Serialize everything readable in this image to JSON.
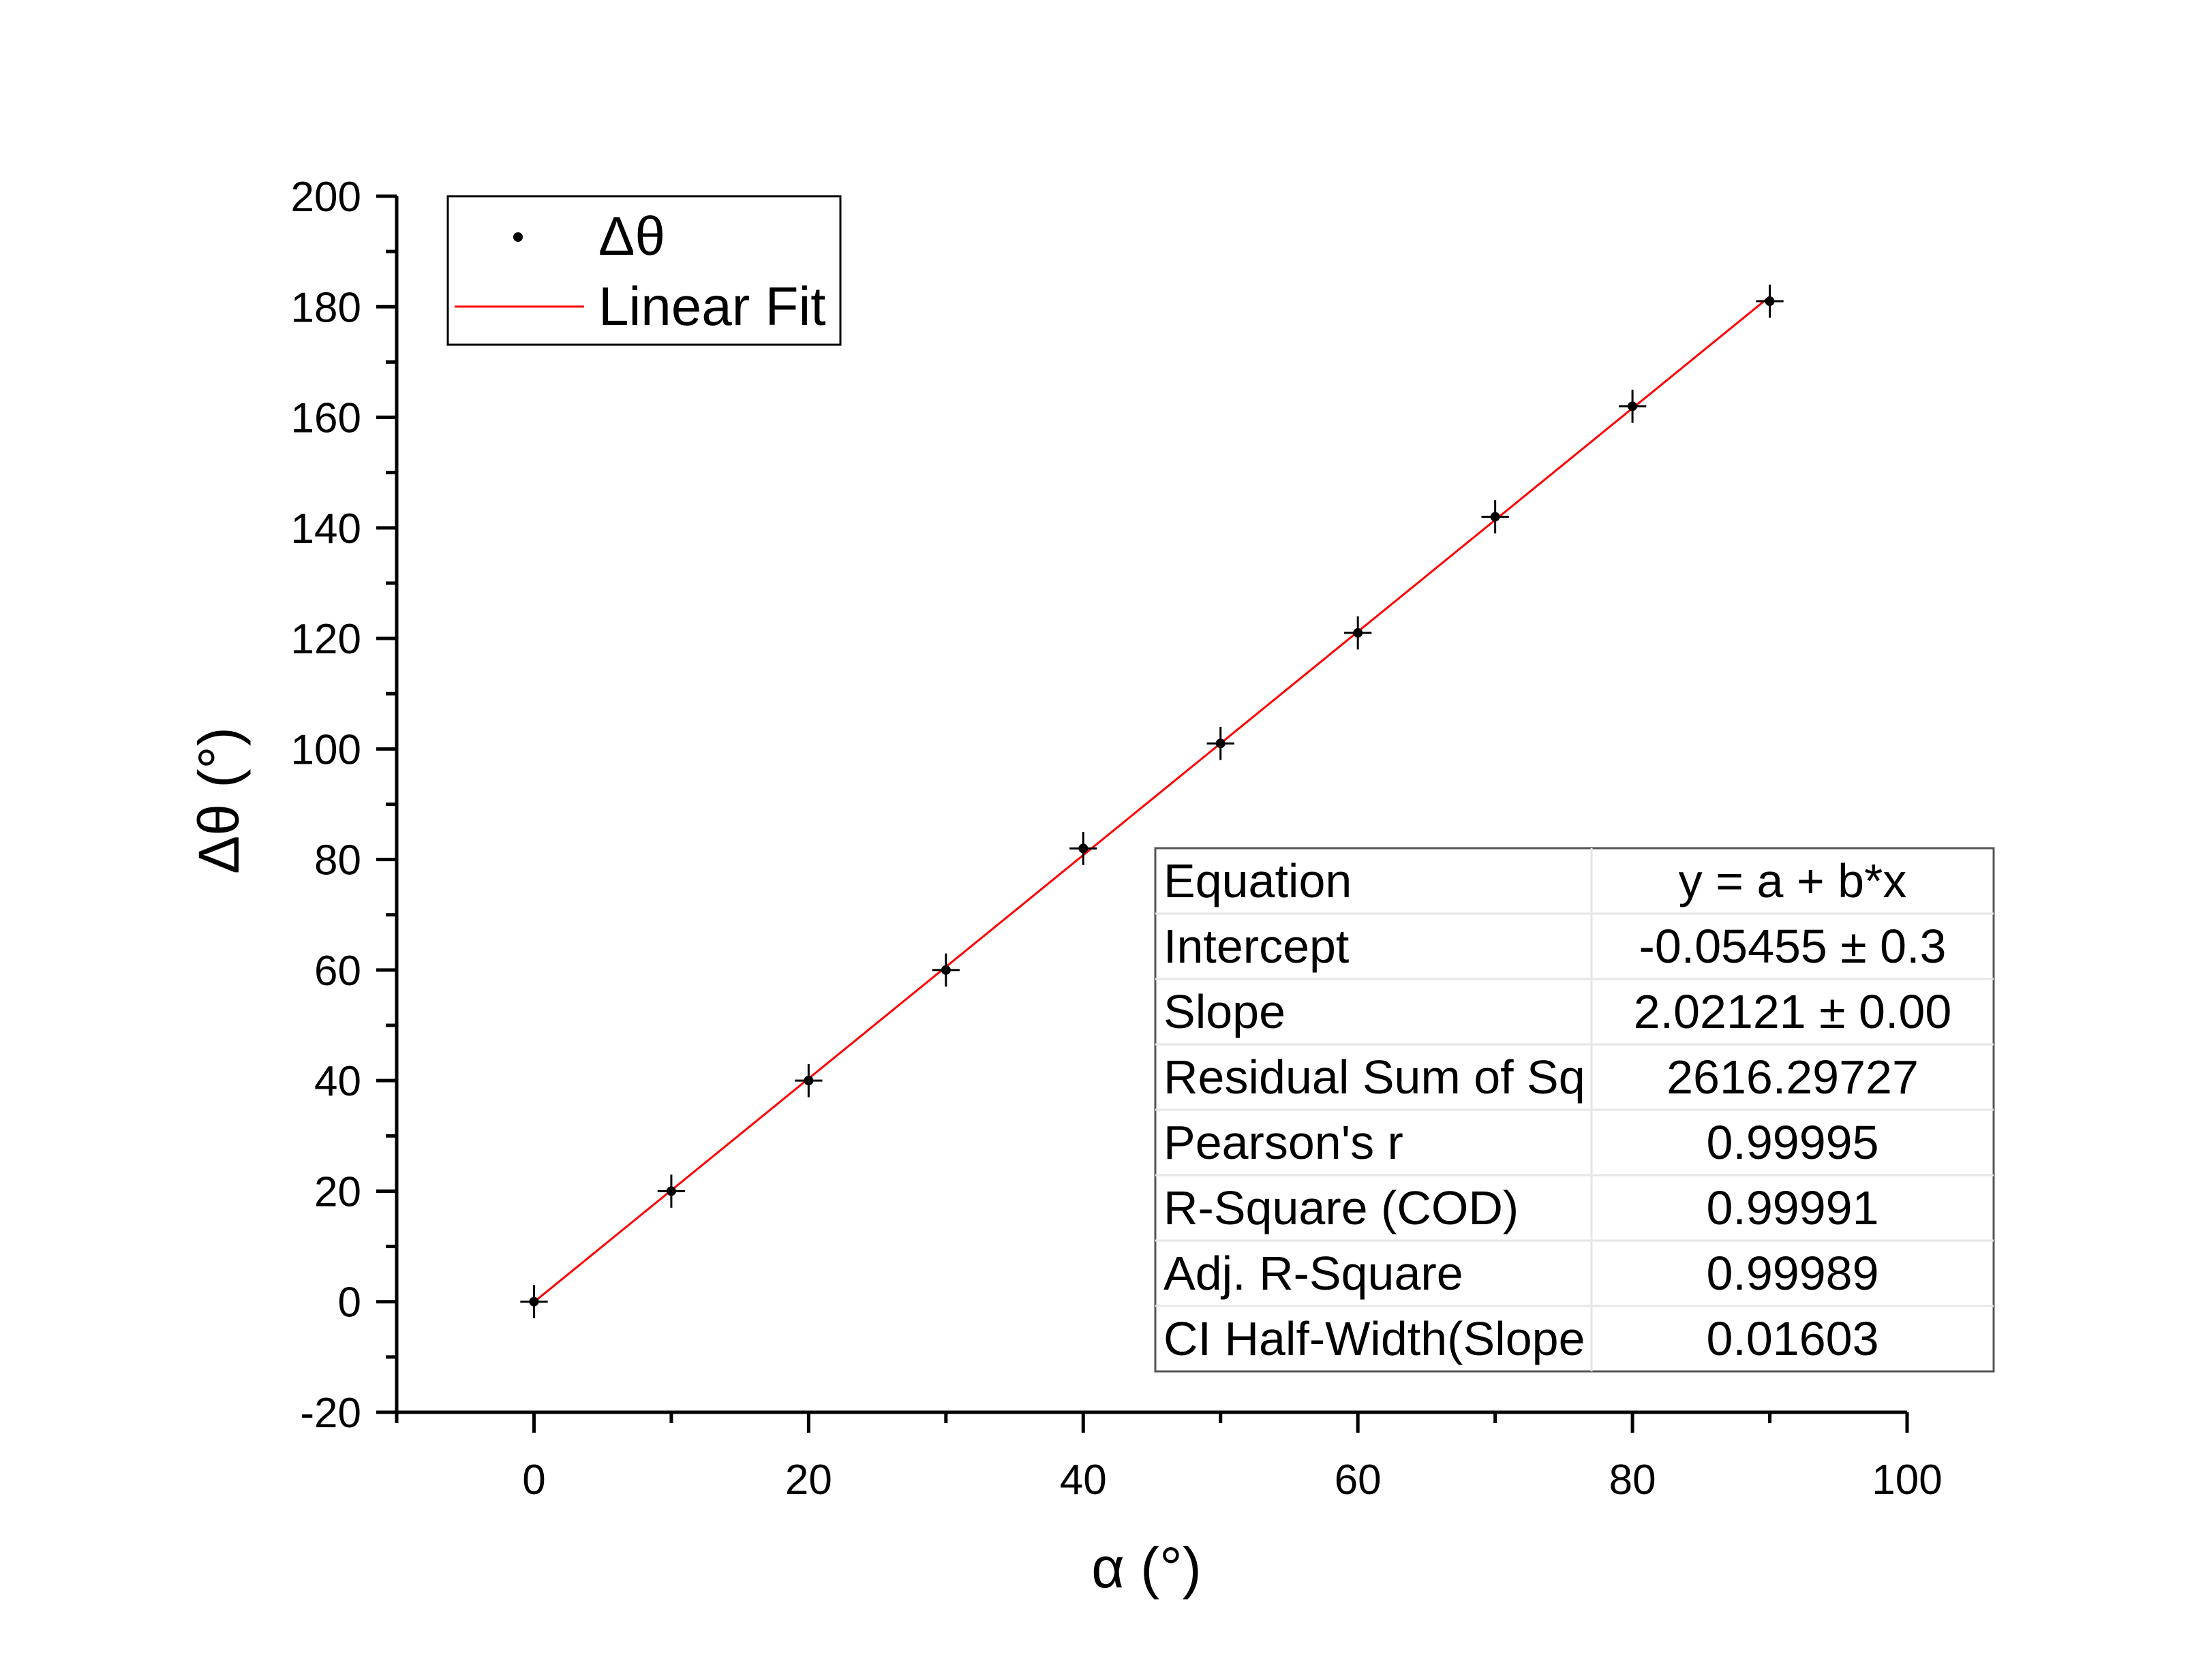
{
  "chart_data": {
    "type": "scatter",
    "xlabel": "α (°)",
    "ylabel": "Δθ (°)",
    "xlim": [
      -10,
      100
    ],
    "ylim": [
      -20,
      200
    ],
    "x_ticks": [
      0,
      20,
      40,
      60,
      80,
      100
    ],
    "y_ticks": [
      -20,
      0,
      20,
      40,
      60,
      80,
      100,
      120,
      140,
      160,
      180,
      200
    ],
    "grid": false,
    "legend_placement": "top-left",
    "series": [
      {
        "name": "Δθ",
        "kind": "points-with-error-bars",
        "color": "#000000",
        "x": [
          0,
          10,
          20,
          30,
          40,
          50,
          60,
          70,
          80,
          90
        ],
        "y": [
          0,
          20,
          40,
          60,
          82,
          101,
          121,
          142,
          162,
          181
        ],
        "x_error": 1,
        "y_error": 3
      },
      {
        "name": "Linear Fit",
        "kind": "line",
        "color": "#ff0000",
        "intercept": -0.05455,
        "slope": 2.02121,
        "x_range": [
          0,
          90
        ]
      }
    ],
    "fit_table": {
      "rows": [
        {
          "label": "Equation",
          "value": "y = a + b*x"
        },
        {
          "label": "Intercept",
          "value": "-0.05455 ± 0.3"
        },
        {
          "label": "Slope",
          "value": "2.02121 ± 0.00"
        },
        {
          "label": "Residual Sum of Sq",
          "value": "2616.29727"
        },
        {
          "label": "Pearson's r",
          "value": "0.99995"
        },
        {
          "label": "R-Square (COD)",
          "value": "0.99991"
        },
        {
          "label": "Adj. R-Square",
          "value": "0.99989"
        },
        {
          "label": "CI Half-Width(Slope",
          "value": "0.01603"
        }
      ]
    }
  }
}
